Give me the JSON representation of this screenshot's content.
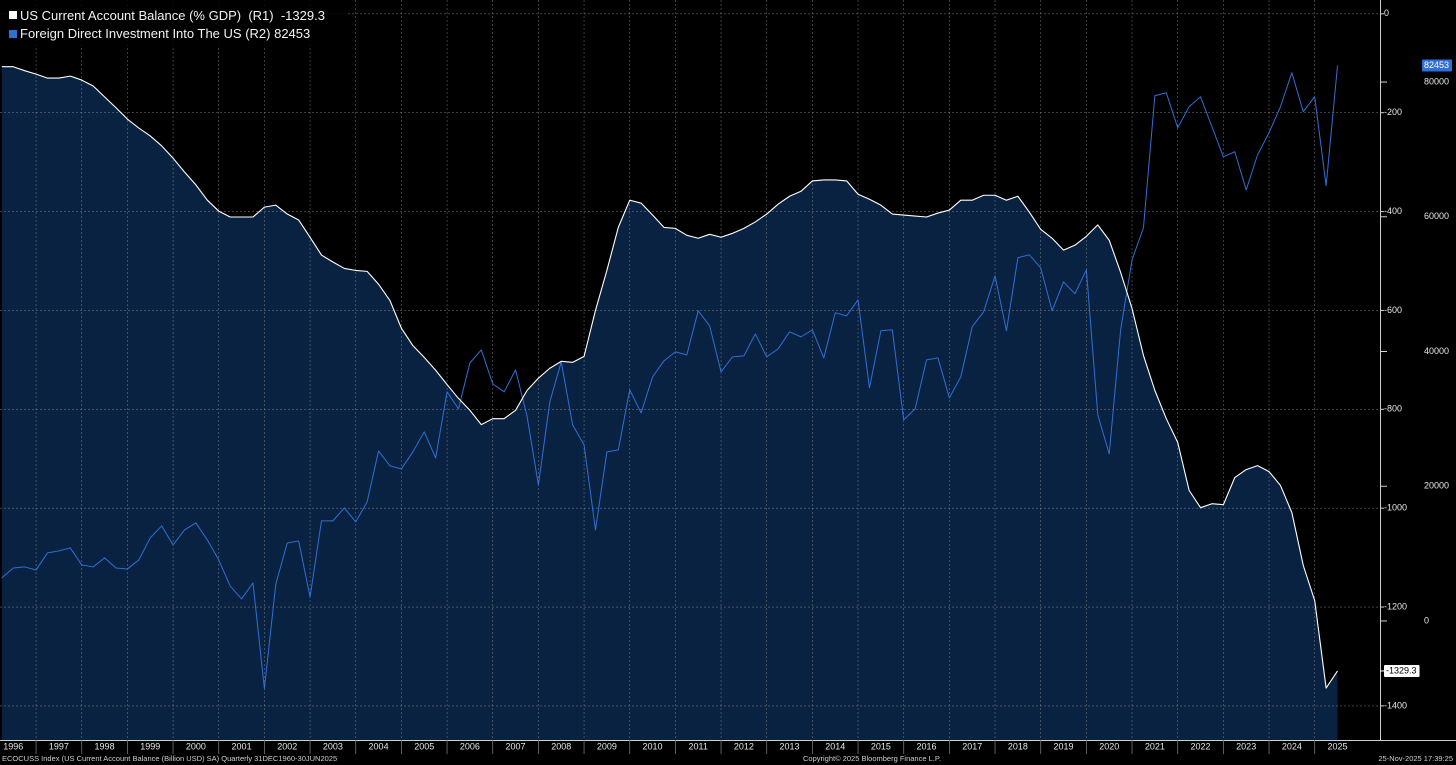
{
  "chart_data": {
    "type": "line",
    "legend": "top-left",
    "grid": true,
    "x": [
      1996.25,
      1996.5,
      1996.75,
      1997,
      1997.25,
      1997.5,
      1997.75,
      1998,
      1998.25,
      1998.5,
      1998.75,
      1999,
      1999.25,
      1999.5,
      1999.75,
      2000,
      2000.25,
      2000.5,
      2000.75,
      2001,
      2001.25,
      2001.5,
      2001.75,
      2002,
      2002.25,
      2002.5,
      2002.75,
      2003,
      2003.25,
      2003.5,
      2003.75,
      2004,
      2004.25,
      2004.5,
      2004.75,
      2005,
      2005.25,
      2005.5,
      2005.75,
      2006,
      2006.25,
      2006.5,
      2006.75,
      2007,
      2007.25,
      2007.5,
      2007.75,
      2008,
      2008.25,
      2008.5,
      2008.75,
      2009,
      2009.25,
      2009.5,
      2009.75,
      2010,
      2010.25,
      2010.5,
      2010.75,
      2011,
      2011.25,
      2011.5,
      2011.75,
      2012,
      2012.25,
      2012.5,
      2012.75,
      2013,
      2013.25,
      2013.5,
      2013.75,
      2014,
      2014.25,
      2014.5,
      2014.75,
      2015,
      2015.25,
      2015.5,
      2015.75,
      2016,
      2016.25,
      2016.5,
      2016.75,
      2017,
      2017.25,
      2017.5,
      2017.75,
      2018,
      2018.25,
      2018.5,
      2018.75,
      2019,
      2019.25,
      2019.5,
      2019.75,
      2020,
      2020.25,
      2020.5,
      2020.75,
      2021,
      2021.25,
      2021.5,
      2021.75,
      2022,
      2022.25,
      2022.5,
      2022.75,
      2023,
      2023.25,
      2023.5,
      2023.75,
      2024,
      2024.25,
      2024.5,
      2024.75,
      2025,
      2025.25,
      2025.5
    ],
    "xlim": [
      1996.21,
      2026.43
    ],
    "xticks": [
      1996,
      1997,
      1998,
      1999,
      2000,
      2001,
      2002,
      2003,
      2004,
      2005,
      2006,
      2007,
      2008,
      2009,
      2010,
      2011,
      2012,
      2013,
      2014,
      2015,
      2016,
      2017,
      2018,
      2019,
      2020,
      2021,
      2022,
      2023,
      2024,
      2025
    ],
    "ylim": [
      -1469,
      28
    ],
    "yticks": [
      0,
      -200,
      -400,
      -600,
      -800,
      -1000,
      -1200,
      -1400
    ],
    "y2lim": [
      -17670,
      92175
    ],
    "y2ticks": [
      0,
      20000,
      40000,
      60000,
      80000
    ],
    "series": [
      {
        "name": "US Current Account Balance (% GDP)  (R1)",
        "color": "#ffffff",
        "fill": "#0a2241",
        "axis": "y",
        "values": [
          -107,
          -107,
          -115,
          -122,
          -130,
          -130,
          -126,
          -134,
          -146,
          -168,
          -190,
          -213,
          -231,
          -247,
          -267,
          -292,
          -320,
          -346,
          -377,
          -399,
          -411,
          -411,
          -411,
          -391,
          -387,
          -405,
          -417,
          -452,
          -488,
          -502,
          -515,
          -519,
          -521,
          -547,
          -580,
          -636,
          -671,
          -695,
          -721,
          -750,
          -778,
          -802,
          -831,
          -819,
          -819,
          -802,
          -762,
          -737,
          -717,
          -703,
          -705,
          -693,
          -600,
          -519,
          -432,
          -377,
          -383,
          -407,
          -432,
          -434,
          -448,
          -454,
          -446,
          -452,
          -444,
          -434,
          -421,
          -405,
          -385,
          -369,
          -359,
          -338,
          -336,
          -336,
          -338,
          -365,
          -375,
          -387,
          -405,
          -407,
          -409,
          -411,
          -403,
          -397,
          -377,
          -377,
          -367,
          -367,
          -377,
          -369,
          -401,
          -436,
          -454,
          -478,
          -468,
          -450,
          -427,
          -458,
          -523,
          -596,
          -691,
          -762,
          -819,
          -867,
          -964,
          -999,
          -991,
          -993,
          -938,
          -922,
          -914,
          -926,
          -954,
          -1009,
          -1116,
          -1187,
          -1364,
          -1329.3
        ]
      },
      {
        "name": "Foreign Direct Investment Into The US (R2)",
        "color": "#2f6fd6",
        "axis": "y2",
        "values": [
          6400,
          7870,
          8020,
          7570,
          10100,
          10400,
          10840,
          8320,
          8020,
          9360,
          7870,
          7720,
          9060,
          12330,
          14110,
          11290,
          13510,
          14550,
          12030,
          9060,
          5200,
          3270,
          5640,
          -10050,
          5490,
          11580,
          11880,
          3560,
          14850,
          14850,
          16780,
          14700,
          17670,
          25240,
          23020,
          22570,
          25090,
          28070,
          24200,
          34010,
          31480,
          38310,
          40240,
          35190,
          34010,
          37270,
          30440,
          20200,
          32520,
          38460,
          29110,
          26140,
          13510,
          25100,
          25390,
          34300,
          30890,
          36230,
          38610,
          39950,
          39500,
          46040,
          43810,
          36980,
          39200,
          39350,
          42620,
          39200,
          40390,
          42920,
          42170,
          43210,
          39060,
          45740,
          45290,
          47670,
          34600,
          43070,
          43210,
          29850,
          31480,
          38760,
          39060,
          33120,
          36230,
          43660,
          45890,
          51230,
          43070,
          53910,
          54350,
          52420,
          46040,
          50340,
          48560,
          52120,
          30590,
          24800,
          43210,
          53610,
          58360,
          77960,
          78410,
          73210,
          76330,
          77810,
          73360,
          68900,
          69650,
          64000,
          69200,
          72470,
          76330,
          81380,
          75590,
          77810,
          64600,
          82453
        ]
      }
    ],
    "footer": {
      "source": "ECOCUSS Index (US Current Account Balance (Billion USD) SA) Quarterly 31DEC1960-30JUN2025",
      "copyright": "Copyright© 2025 Bloomberg Finance L.P.",
      "timestamp": "25-Nov-2025 17:39:25"
    }
  }
}
